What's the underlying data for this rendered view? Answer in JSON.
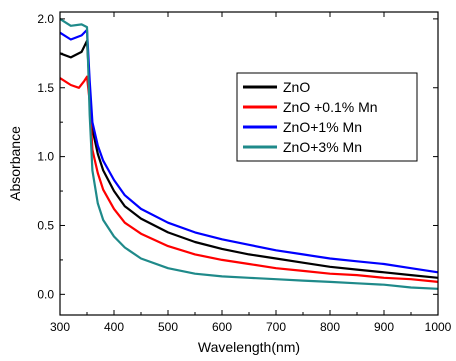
{
  "chart_data": {
    "type": "line",
    "xlabel": "Wavelength(nm)",
    "ylabel": "Absorbance",
    "xlim": [
      300,
      1000
    ],
    "ylim": [
      -0.15,
      2.05
    ],
    "xticks": [
      300,
      400,
      500,
      600,
      700,
      800,
      900,
      1000
    ],
    "yticks": [
      0.0,
      0.5,
      1.0,
      1.5,
      2.0
    ],
    "ytick_labels": [
      "0.0",
      "0.5",
      "1.0",
      "1.5",
      "2.0"
    ],
    "legend_position": "top-right",
    "grid": false,
    "series": [
      {
        "name": "ZnO",
        "color": "#000000",
        "x": [
          300,
          320,
          340,
          350,
          355,
          360,
          370,
          380,
          400,
          420,
          450,
          500,
          550,
          600,
          650,
          700,
          750,
          800,
          850,
          900,
          950,
          1000
        ],
        "y": [
          1.75,
          1.72,
          1.76,
          1.84,
          1.5,
          1.2,
          1.02,
          0.9,
          0.75,
          0.64,
          0.55,
          0.45,
          0.38,
          0.33,
          0.29,
          0.26,
          0.23,
          0.2,
          0.18,
          0.16,
          0.14,
          0.12
        ]
      },
      {
        "name": "ZnO +0.1% Mn",
        "color": "#ff0000",
        "x": [
          300,
          320,
          335,
          345,
          350,
          355,
          360,
          370,
          380,
          400,
          420,
          450,
          500,
          550,
          600,
          650,
          700,
          750,
          800,
          850,
          900,
          950,
          1000
        ],
        "y": [
          1.57,
          1.52,
          1.5,
          1.55,
          1.58,
          1.4,
          1.05,
          0.88,
          0.76,
          0.62,
          0.52,
          0.44,
          0.35,
          0.29,
          0.25,
          0.22,
          0.19,
          0.17,
          0.15,
          0.14,
          0.12,
          0.11,
          0.09
        ]
      },
      {
        "name": "ZnO+1% Mn",
        "color": "#0000ff",
        "x": [
          300,
          320,
          340,
          350,
          355,
          360,
          370,
          380,
          400,
          420,
          450,
          500,
          550,
          600,
          650,
          700,
          750,
          800,
          850,
          900,
          950,
          1000
        ],
        "y": [
          1.9,
          1.85,
          1.88,
          1.92,
          1.55,
          1.25,
          1.08,
          0.97,
          0.83,
          0.72,
          0.62,
          0.52,
          0.45,
          0.4,
          0.36,
          0.32,
          0.29,
          0.26,
          0.24,
          0.22,
          0.19,
          0.16
        ]
      },
      {
        "name": "ZnO+3% Mn",
        "color": "#1f8a8a",
        "x": [
          300,
          320,
          340,
          350,
          355,
          360,
          370,
          380,
          400,
          420,
          450,
          500,
          550,
          600,
          650,
          700,
          750,
          800,
          850,
          900,
          950,
          1000
        ],
        "y": [
          2.0,
          1.95,
          1.96,
          1.94,
          1.3,
          0.9,
          0.66,
          0.54,
          0.42,
          0.34,
          0.26,
          0.19,
          0.15,
          0.13,
          0.12,
          0.11,
          0.1,
          0.09,
          0.08,
          0.07,
          0.05,
          0.04
        ]
      }
    ]
  }
}
